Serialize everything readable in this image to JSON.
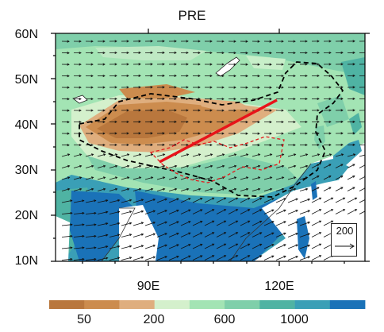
{
  "title": "PRE",
  "lat_labels": [
    "60N",
    "50N",
    "40N",
    "30N",
    "20N",
    "10N"
  ],
  "lon_labels": [
    "90E",
    "120E"
  ],
  "colorbar": {
    "colors": [
      "#b9773d",
      "#cc8c4e",
      "#dfae7e",
      "#d4f0cc",
      "#a3e4b4",
      "#7fcfaa",
      "#4fb3a3",
      "#3a9fb6",
      "#1a72b8"
    ],
    "labels": [
      "50",
      "200",
      "600",
      "1000"
    ]
  },
  "reference_vector": {
    "label": "200"
  },
  "chart_data": {
    "type": "map",
    "title": "PRE",
    "lat_range": [
      "10N",
      "60N"
    ],
    "lon_range_labels": [
      "90E",
      "120E"
    ],
    "fill_variable": "precipitation",
    "overlays": [
      "wind vectors",
      "China boundary (black dashed)",
      "plateau region (red dashed)",
      "red straight line"
    ],
    "colorbar_ticks": [
      50,
      200,
      600,
      1000
    ],
    "reference_vector": 200
  }
}
